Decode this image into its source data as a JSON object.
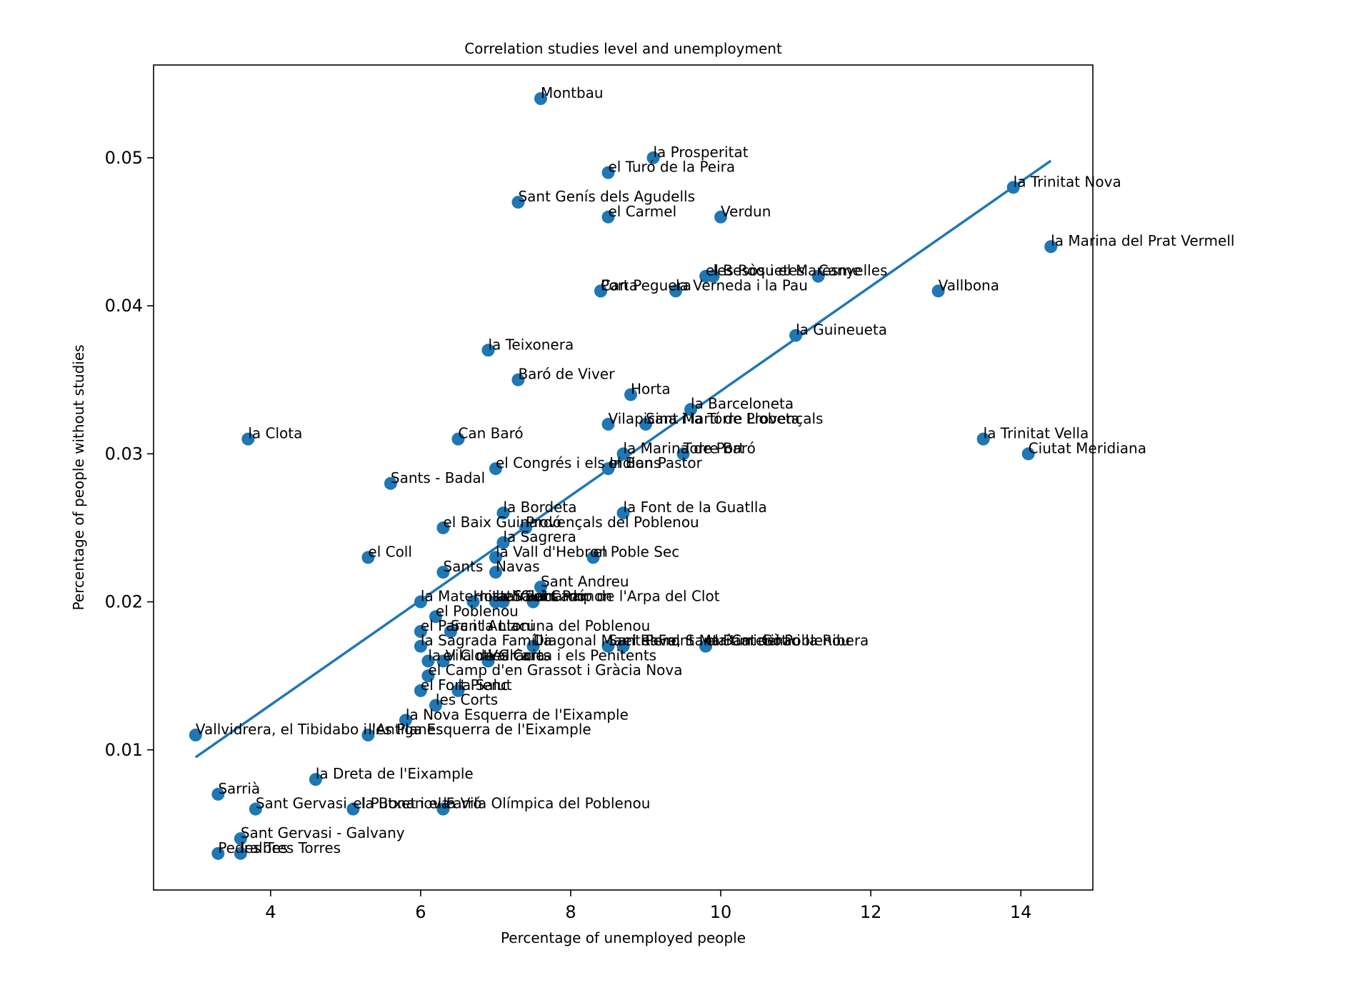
{
  "chart_data": {
    "type": "scatter",
    "title": "Correlation studies level and unemployment",
    "xlabel": "Percentage of unemployed people",
    "ylabel": "Percentage of people without studies",
    "xlim": [
      2.44,
      14.96
    ],
    "ylim": [
      0.00053,
      0.05627
    ],
    "xticks": [
      4,
      6,
      8,
      10,
      12,
      14
    ],
    "yticks": [
      0.01,
      0.02,
      0.03,
      0.04,
      0.05
    ],
    "xtick_labels": [
      "4",
      "6",
      "8",
      "10",
      "12",
      "14"
    ],
    "ytick_labels": [
      "0.01",
      "0.02",
      "0.03",
      "0.04",
      "0.05"
    ],
    "grid": false,
    "point_color": "#1f77b4",
    "trendline": {
      "x": [
        3.0,
        14.4
      ],
      "y": [
        0.0095,
        0.0498
      ]
    },
    "points": [
      {
        "label": "Montbau",
        "x": 7.6,
        "y": 0.054
      },
      {
        "label": "la Prosperitat",
        "x": 9.1,
        "y": 0.05
      },
      {
        "label": "el Turó de la Peira",
        "x": 8.5,
        "y": 0.049
      },
      {
        "label": "la Trinitat Nova",
        "x": 13.9,
        "y": 0.048
      },
      {
        "label": "Sant Genís dels Agudells",
        "x": 7.3,
        "y": 0.047
      },
      {
        "label": "el Carmel",
        "x": 8.5,
        "y": 0.046
      },
      {
        "label": "Verdun",
        "x": 10.0,
        "y": 0.046
      },
      {
        "label": "la Marina del Prat Vermell",
        "x": 14.4,
        "y": 0.044
      },
      {
        "label": "el Besòs i el Maresme",
        "x": 9.8,
        "y": 0.042
      },
      {
        "label": "les Roquetes",
        "x": 9.9,
        "y": 0.042
      },
      {
        "label": "Canyelles",
        "x": 11.3,
        "y": 0.042
      },
      {
        "label": "Porta",
        "x": 8.4,
        "y": 0.041
      },
      {
        "label": "Can Peguera",
        "x": 8.4,
        "y": 0.041
      },
      {
        "label": "la Verneda i la Pau",
        "x": 9.4,
        "y": 0.041
      },
      {
        "label": "Vallbona",
        "x": 12.9,
        "y": 0.041
      },
      {
        "label": "la Guineueta",
        "x": 11.0,
        "y": 0.038
      },
      {
        "label": "la Teixonera",
        "x": 6.9,
        "y": 0.037
      },
      {
        "label": "Baró de Viver",
        "x": 7.3,
        "y": 0.035
      },
      {
        "label": "Horta",
        "x": 8.8,
        "y": 0.034
      },
      {
        "label": "la Barceloneta",
        "x": 9.6,
        "y": 0.033
      },
      {
        "label": "Vilapicina i la Torre Llobeta",
        "x": 8.5,
        "y": 0.032
      },
      {
        "label": "Sant Martí de Provençals",
        "x": 9.0,
        "y": 0.032
      },
      {
        "label": "la Clota",
        "x": 3.7,
        "y": 0.031
      },
      {
        "label": "Can Baró",
        "x": 6.5,
        "y": 0.031
      },
      {
        "label": "la Trinitat Vella",
        "x": 13.5,
        "y": 0.031
      },
      {
        "label": "la Marina de Port",
        "x": 8.7,
        "y": 0.03
      },
      {
        "label": "Torre Baró",
        "x": 9.5,
        "y": 0.03
      },
      {
        "label": "Ciutat Meridiana",
        "x": 14.1,
        "y": 0.03
      },
      {
        "label": "el Congrés i els Indians",
        "x": 7.0,
        "y": 0.029
      },
      {
        "label": "el Bon Pastor",
        "x": 8.5,
        "y": 0.029
      },
      {
        "label": "Sants - Badal",
        "x": 5.6,
        "y": 0.028
      },
      {
        "label": "la Bordeta",
        "x": 7.1,
        "y": 0.026
      },
      {
        "label": "la Font de la Guatlla",
        "x": 8.7,
        "y": 0.026
      },
      {
        "label": "el Baix Guinardó",
        "x": 6.3,
        "y": 0.025
      },
      {
        "label": "Provençals del Poblenou",
        "x": 7.4,
        "y": 0.025
      },
      {
        "label": "la Sagrera",
        "x": 7.1,
        "y": 0.024
      },
      {
        "label": "el Coll",
        "x": 5.3,
        "y": 0.023
      },
      {
        "label": "la Vall d'Hebron",
        "x": 7.0,
        "y": 0.023
      },
      {
        "label": "el Poble Sec",
        "x": 8.3,
        "y": 0.023
      },
      {
        "label": "Sants",
        "x": 6.3,
        "y": 0.022
      },
      {
        "label": "Navas",
        "x": 7.0,
        "y": 0.022
      },
      {
        "label": "Sant Andreu",
        "x": 7.6,
        "y": 0.021
      },
      {
        "label": "la Maternitat i Sant Ramon",
        "x": 6.0,
        "y": 0.02
      },
      {
        "label": "Hostafrancs",
        "x": 6.7,
        "y": 0.02
      },
      {
        "label": "la Salut",
        "x": 7.0,
        "y": 0.02
      },
      {
        "label": "el Guinardó",
        "x": 7.1,
        "y": 0.02
      },
      {
        "label": "el Camp de l'Arpa del Clot",
        "x": 7.5,
        "y": 0.02
      },
      {
        "label": "el Poblenou",
        "x": 6.2,
        "y": 0.019
      },
      {
        "label": "el Parc i la Llacuna del Poblenou",
        "x": 6.0,
        "y": 0.018
      },
      {
        "label": "Sant Antoni",
        "x": 6.4,
        "y": 0.018
      },
      {
        "label": "la Sagrada Família",
        "x": 6.0,
        "y": 0.017
      },
      {
        "label": "Diagonal Mar i el Front Marítim del Poblenou",
        "x": 7.5,
        "y": 0.017
      },
      {
        "label": "Sant Pere, Santa Caterina i la Ribera",
        "x": 8.5,
        "y": 0.017
      },
      {
        "label": "el Raval",
        "x": 8.7,
        "y": 0.017
      },
      {
        "label": "el Barri Gòtic",
        "x": 9.8,
        "y": 0.017
      },
      {
        "label": "la Vila de Gràcia",
        "x": 6.1,
        "y": 0.016
      },
      {
        "label": "el Clot",
        "x": 6.3,
        "y": 0.016
      },
      {
        "label": "les Corts",
        "x": 6.9,
        "y": 0.016
      },
      {
        "label": "Vallcarca i els Penitents",
        "x": 6.9,
        "y": 0.016
      },
      {
        "label": "el Camp d'en Grassot i Gràcia Nova",
        "x": 6.1,
        "y": 0.015
      },
      {
        "label": "el Fort Pienc",
        "x": 6.0,
        "y": 0.014
      },
      {
        "label": "la Salut",
        "x": 6.5,
        "y": 0.014
      },
      {
        "label": "les Corts",
        "x": 6.2,
        "y": 0.013
      },
      {
        "label": "la Nova Esquerra de l'Eixample",
        "x": 5.8,
        "y": 0.012
      },
      {
        "label": "Vallvidrera, el Tibidabo i les Planes",
        "x": 3.0,
        "y": 0.011
      },
      {
        "label": "l'Antiga Esquerra de l'Eixample",
        "x": 5.3,
        "y": 0.011
      },
      {
        "label": "la Dreta de l'Eixample",
        "x": 4.6,
        "y": 0.008
      },
      {
        "label": "Sarrià",
        "x": 3.3,
        "y": 0.007
      },
      {
        "label": "Sant Gervasi - la Bonanova",
        "x": 3.8,
        "y": 0.006
      },
      {
        "label": "el Putxet i el Farró",
        "x": 5.1,
        "y": 0.006
      },
      {
        "label": "la Vila Olímpica del Poblenou",
        "x": 6.3,
        "y": 0.006
      },
      {
        "label": "Sant Gervasi - Galvany",
        "x": 3.6,
        "y": 0.004
      },
      {
        "label": "Pedralbes",
        "x": 3.3,
        "y": 0.003
      },
      {
        "label": "les Tres Torres",
        "x": 3.6,
        "y": 0.003
      }
    ]
  }
}
